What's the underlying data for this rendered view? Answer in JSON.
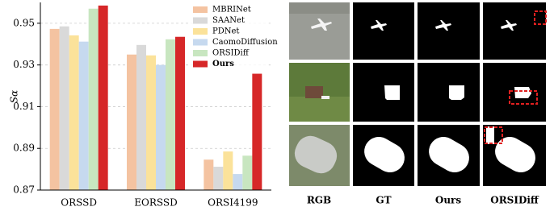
{
  "chart_data": {
    "type": "bar",
    "ylabel": "Sα",
    "categories": [
      "ORSSD",
      "EORSSD",
      "ORSI4199"
    ],
    "series": [
      {
        "name": "MBRINet",
        "color": "#f4c3a1",
        "values": [
          0.9473,
          0.935,
          0.8846
        ]
      },
      {
        "name": "SAANet",
        "color": "#d9d9d9",
        "values": [
          0.9485,
          0.9396,
          0.8812
        ]
      },
      {
        "name": "PDNet",
        "color": "#fbe29a",
        "values": [
          0.9442,
          0.9346,
          0.8885
        ]
      },
      {
        "name": "CaomoDiffusion",
        "color": "#c6d9ef",
        "values": [
          0.9412,
          0.93,
          0.8777
        ]
      },
      {
        "name": "ORSIDiff",
        "color": "#c8e6c0",
        "values": [
          0.957,
          0.9423,
          0.8865
        ]
      },
      {
        "name": "Ours",
        "color": "#d62728",
        "values": [
          0.9585,
          0.9435,
          0.9258
        ]
      }
    ],
    "ylim": [
      0.87,
      0.96
    ],
    "yticks": [
      0.87,
      0.89,
      0.91,
      0.93,
      0.95
    ],
    "grid": true,
    "legend": "upper right"
  },
  "image_grid": {
    "columns": [
      "RGB",
      "GT",
      "Ours",
      "ORSIDiff"
    ]
  }
}
